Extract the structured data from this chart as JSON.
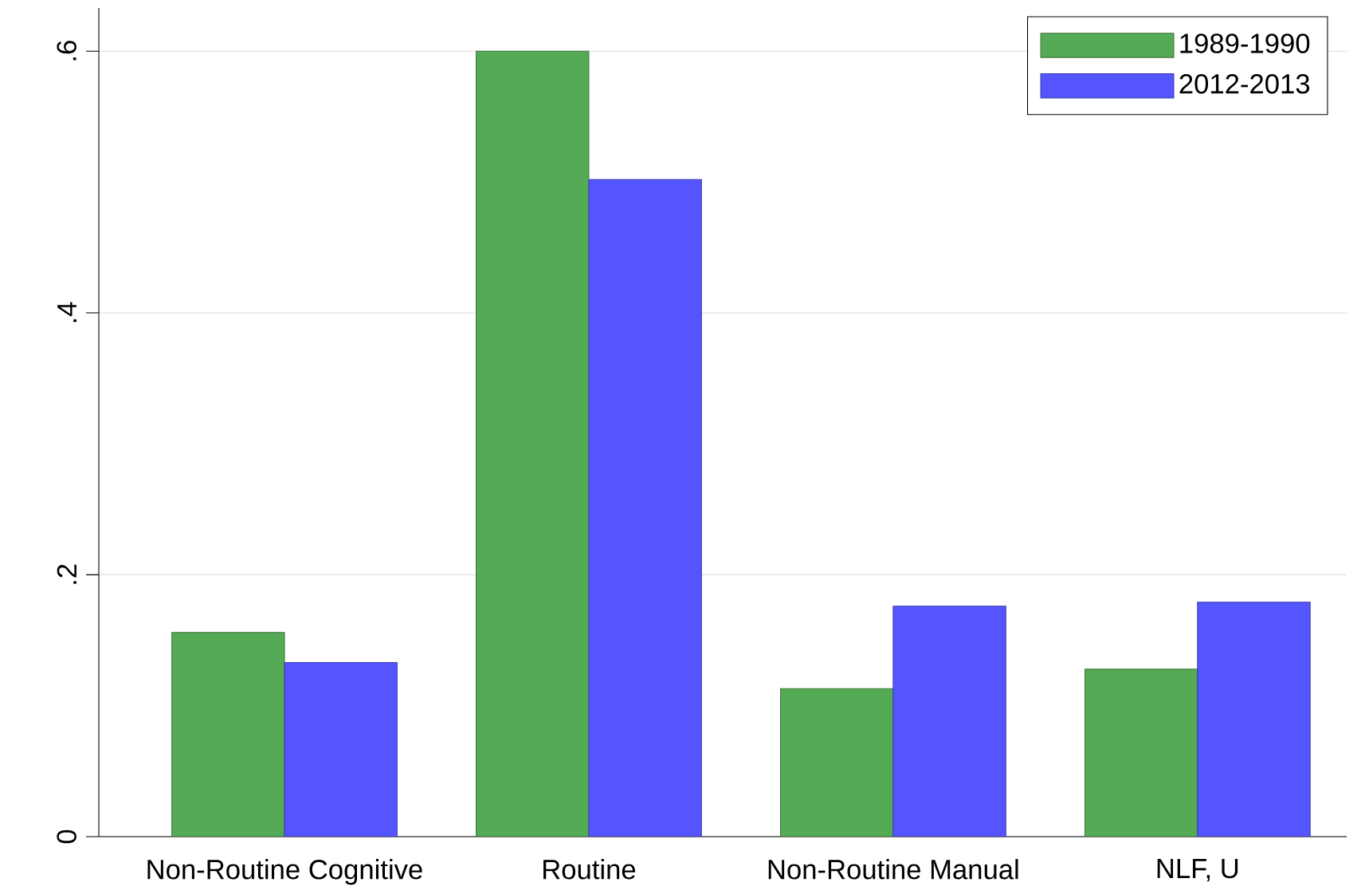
{
  "chart_data": {
    "type": "bar",
    "categories": [
      "Non-Routine Cognitive",
      "Routine",
      "Non-Routine Manual",
      "NLF, U"
    ],
    "series": [
      {
        "name": "1989-1990",
        "color": "#55aa55",
        "values": [
          0.156,
          0.6,
          0.113,
          0.128
        ]
      },
      {
        "name": "2012-2013",
        "color": "#5555ff",
        "values": [
          0.133,
          0.502,
          0.176,
          0.179
        ]
      }
    ],
    "ylim": [
      0,
      0.633
    ],
    "yticks": [
      {
        "value": 0,
        "label": "0"
      },
      {
        "value": 0.2,
        "label": ".2"
      },
      {
        "value": 0.4,
        "label": ".4"
      },
      {
        "value": 0.6,
        "label": ".6"
      }
    ],
    "grid": "y",
    "legend": "top right"
  }
}
